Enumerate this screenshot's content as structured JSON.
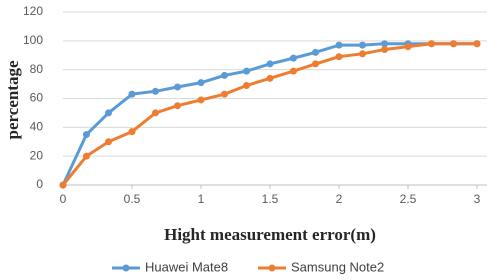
{
  "chart_data": {
    "type": "line",
    "x_label": "Hight measurement error(m)",
    "y_label": "percentage",
    "x": [
      0,
      0.17,
      0.33,
      0.5,
      0.67,
      0.83,
      1,
      1.17,
      1.33,
      1.5,
      1.67,
      1.83,
      2,
      2.17,
      2.33,
      2.5,
      2.67,
      2.83,
      3
    ],
    "series": [
      {
        "name": "Huawei Mate8",
        "color": "#5b9bd5",
        "values": [
          0,
          35,
          50,
          63,
          65,
          68,
          71,
          76,
          79,
          84,
          88,
          92,
          97,
          97,
          98,
          98,
          98,
          98,
          98
        ]
      },
      {
        "name": "Samsung Note2",
        "color": "#ed7d31",
        "values": [
          0,
          20,
          30,
          37,
          50,
          55,
          59,
          63,
          69,
          74,
          79,
          84,
          89,
          91,
          94,
          96,
          98,
          98,
          98
        ]
      }
    ],
    "xlim": [
      0,
      3
    ],
    "xticks": [
      0,
      0.5,
      1,
      1.5,
      2,
      2.5,
      3
    ],
    "ylim": [
      0,
      120
    ],
    "yticks": [
      0,
      20,
      40,
      60,
      80,
      100,
      120
    ],
    "grid": true,
    "legend": "bottom"
  }
}
